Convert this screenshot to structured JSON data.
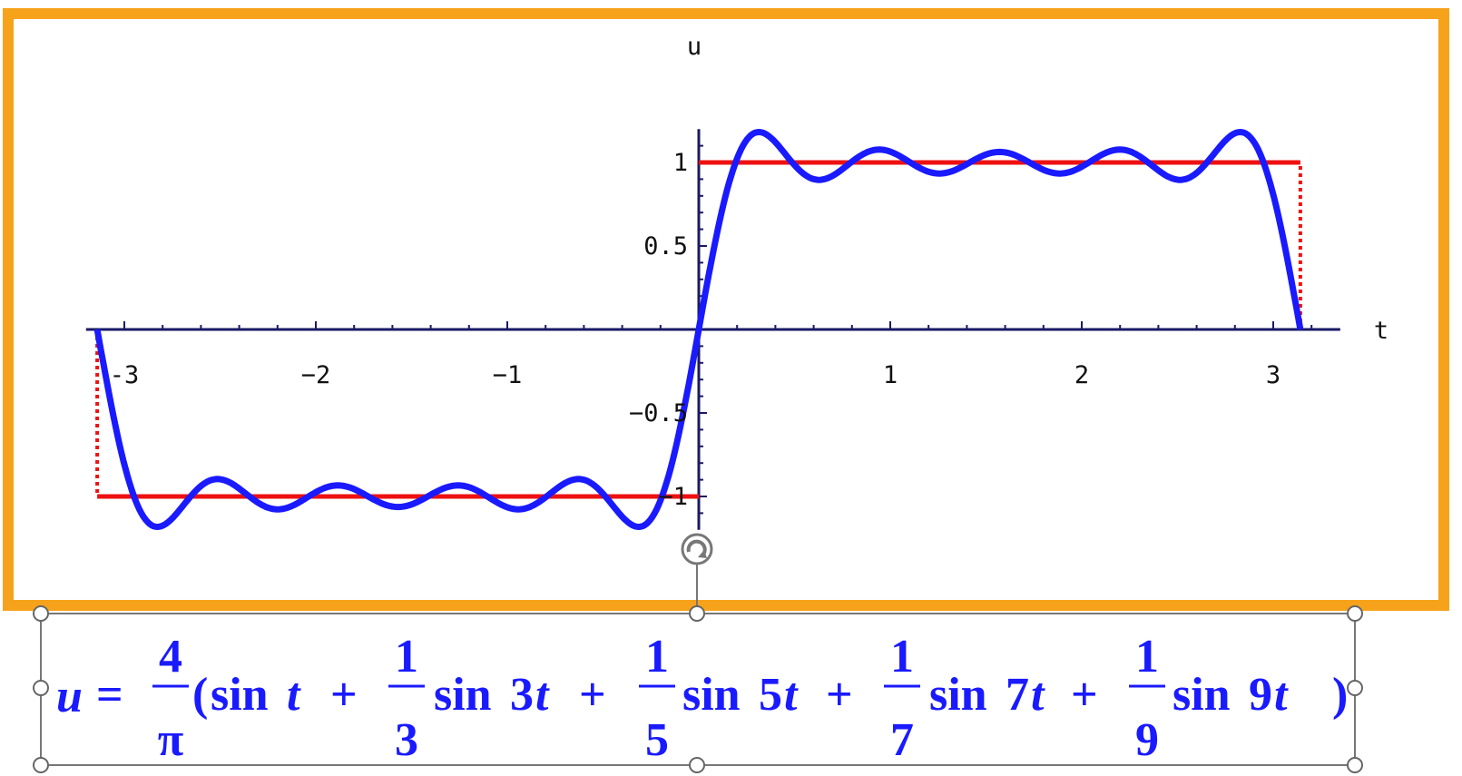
{
  "chart_data": {
    "type": "line",
    "xlabel": "t",
    "ylabel": "u",
    "xlim": [
      -3.2,
      3.35
    ],
    "ylim": [
      -1.2,
      1.2
    ],
    "x_ticks": [
      {
        "value": -3,
        "label": "-3"
      },
      {
        "value": -2,
        "label": "−2"
      },
      {
        "value": -1,
        "label": "−1"
      },
      {
        "value": 1,
        "label": "1"
      },
      {
        "value": 2,
        "label": "2"
      },
      {
        "value": 3,
        "label": "3"
      }
    ],
    "y_ticks": [
      {
        "value": 1,
        "label": "1"
      },
      {
        "value": 0.5,
        "label": "0.5"
      },
      {
        "value": -0.5,
        "label": "−0.5"
      },
      {
        "value": -1,
        "label": "−1"
      }
    ],
    "grid": false,
    "legend": "none",
    "series": [
      {
        "kind": "fourier_partial_sum",
        "coefficient": 1.2732,
        "harmonics": [
          1,
          3,
          5,
          7,
          9
        ],
        "x_range": [
          -3.14159,
          3.14159
        ],
        "color": "#1a1aff"
      },
      {
        "kind": "square_wave",
        "segments": [
          {
            "x": [
              -3.14159,
              0
            ],
            "y": -1
          },
          {
            "x": [
              0,
              3.14159
            ],
            "y": 1
          }
        ],
        "color": "#ee1111"
      }
    ]
  },
  "formula": {
    "lhs": "u",
    "equals": "=",
    "lead_num": "4",
    "lead_den": "π",
    "open": "(",
    "close": ")",
    "plus": "+",
    "first_term": {
      "fn": "sin",
      "arg": "t"
    },
    "terms": [
      {
        "num": "1",
        "den": "3",
        "fn": "sin",
        "coef": "3",
        "var": "t"
      },
      {
        "num": "1",
        "den": "5",
        "fn": "sin",
        "coef": "5",
        "var": "t"
      },
      {
        "num": "1",
        "den": "7",
        "fn": "sin",
        "coef": "7",
        "var": "t"
      },
      {
        "num": "1",
        "den": "9",
        "fn": "sin",
        "coef": "9",
        "var": "t"
      }
    ]
  },
  "colors": {
    "frame_border": "#f7a21b",
    "fourier_curve": "#1a1aff",
    "square_wave": "#ee1111",
    "axes": "#1a1a66",
    "formula": "#1a1aff",
    "selection_handles": "#777777"
  },
  "icons": {
    "rotate_handle": "rotate-icon"
  }
}
